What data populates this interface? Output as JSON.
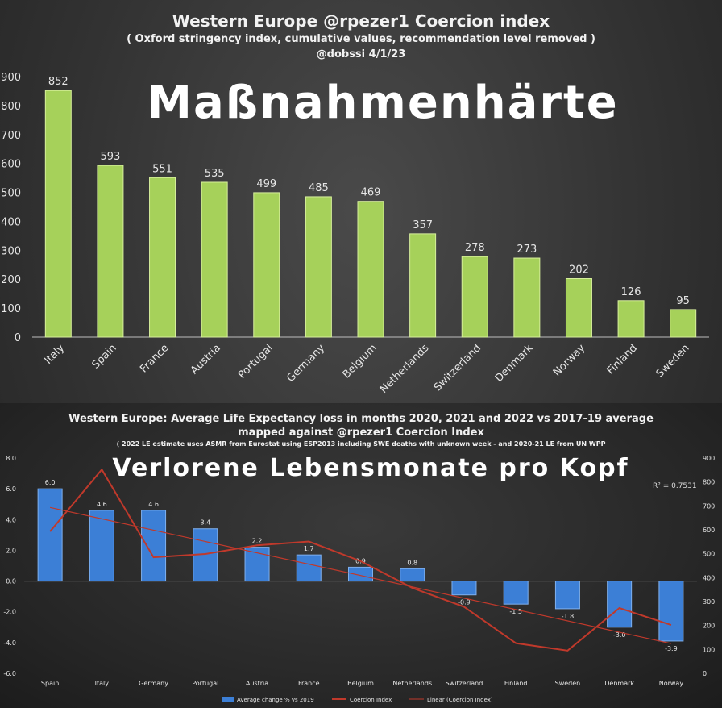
{
  "chart_data": [
    {
      "type": "bar",
      "title": "Western Europe @rpezer1 Coercion index",
      "subtitle": "( Oxford stringency index, cumulative values, recommendation level removed )",
      "credit": "@dobssi 4/1/23",
      "overlay": "Maßnahmenhärte",
      "categories": [
        "Italy",
        "Spain",
        "France",
        "Austria",
        "Portugal",
        "Germany",
        "Belgium",
        "Netherlands",
        "Switzerland",
        "Denmark",
        "Norway",
        "Finland",
        "Sweden"
      ],
      "values": [
        852,
        593,
        551,
        535,
        499,
        485,
        469,
        357,
        278,
        273,
        202,
        126,
        95
      ],
      "data_labels": [
        "852",
        "593",
        "551",
        "535",
        "499",
        "485",
        "469",
        "357",
        "278",
        "273",
        "202",
        "126",
        "95"
      ],
      "ylim": [
        0,
        900
      ],
      "yticks": [
        "0",
        "100",
        "200",
        "300",
        "400",
        "500",
        "600",
        "700",
        "800",
        "900"
      ],
      "bar_color": "#a6d15a",
      "grid": false
    },
    {
      "type": "bar",
      "title": "Western Europe: Average Life Expectancy loss in months 2020, 2021 and 2022 vs 2017-19 average",
      "subtitle": "mapped against @rpezer1 Coercion Index",
      "note": "( 2022 LE estimate uses ASMR from Eurostat using ESP2013 including SWE deaths with unknown week - and 2020-21 LE from UN WPP",
      "overlay": "Verlorene Lebensmonate pro Kopf",
      "r_squared": "R² = 0.7531",
      "categories": [
        "Spain",
        "Italy",
        "Germany",
        "Portugal",
        "Austria",
        "France",
        "Belgium",
        "Netherlands",
        "Switzerland",
        "Finland",
        "Sweden",
        "Denmark",
        "Norway"
      ],
      "series": [
        {
          "name": "Average change % vs 2019",
          "values": [
            6.0,
            4.6,
            4.6,
            3.4,
            2.2,
            1.7,
            0.9,
            0.8,
            -0.9,
            -1.5,
            -1.8,
            -3.0,
            -3.9
          ],
          "axis": "left",
          "color": "#3c7fd6"
        },
        {
          "name": "Coercion Index",
          "values": [
            593,
            852,
            485,
            499,
            535,
            551,
            469,
            357,
            278,
            126,
            95,
            273,
            202
          ],
          "axis": "right",
          "color": "#c0392b"
        },
        {
          "name": "Linear (Coercion Index)",
          "axis": "right",
          "color": "#c0392b",
          "style": "thin"
        }
      ],
      "data_labels": [
        "6.0",
        "4.6",
        "4.6",
        "3.4",
        "2.2",
        "1.7",
        "0.9",
        "0.8",
        "-0.9",
        "-1.5",
        "-1.8",
        "-3.0",
        "-3.9"
      ],
      "ylim_left": [
        -6,
        8
      ],
      "ylim_right": [
        0,
        900
      ],
      "yticks_left": [
        "-6.0",
        "-4.0",
        "-2.0",
        "0.0",
        "2.0",
        "4.0",
        "6.0",
        "8.0"
      ],
      "yticks_right": [
        "0",
        "100",
        "200",
        "300",
        "400",
        "500",
        "600",
        "700",
        "800",
        "900"
      ],
      "legend_position": "bottom",
      "grid": false
    }
  ]
}
